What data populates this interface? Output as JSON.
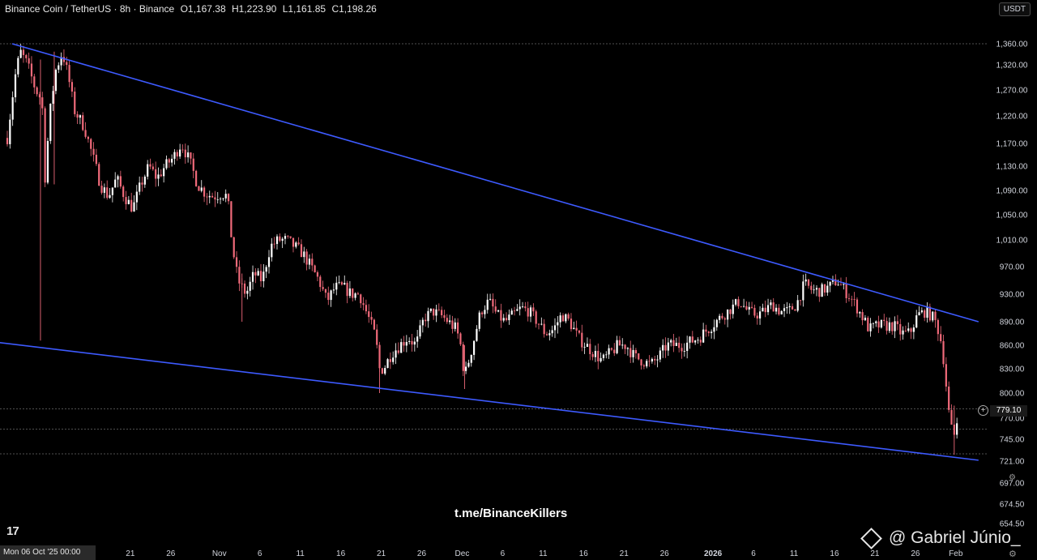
{
  "header": {
    "symbol": "Binance Coin / TetherUS · 8h · Binance",
    "open": "O1,167.38",
    "high": "H1,223.90",
    "low": "L1,161.85",
    "close": "C1,198.26"
  },
  "currency_button": "USDT",
  "tv_logo": "17",
  "watermark": "t.me/BinanceKillers",
  "brand": "@ Gabriel Júnio_",
  "current_price": "779.10",
  "x_axis": {
    "first_label": "Mon 06 Oct '25   00:00",
    "labels": [
      "21",
      "26",
      "Nov",
      "6",
      "11",
      "16",
      "21",
      "26",
      "Dec",
      "6",
      "11",
      "16",
      "21",
      "26",
      "2026",
      "6",
      "11",
      "16",
      "21",
      "26",
      "Feb"
    ]
  },
  "chart_data": {
    "type": "candlestick",
    "title": "",
    "xlabel": "",
    "ylabel": "",
    "ylim": [
      654.5,
      1360
    ],
    "y_ticks": [
      "1,360.00",
      "1,320.00",
      "1,270.00",
      "1,220.00",
      "1,170.00",
      "1,130.00",
      "1,090.00",
      "1,050.00",
      "1,010.00",
      "970.00",
      "930.00",
      "890.00",
      "860.00",
      "830.00",
      "800.00",
      "770.00",
      "745.00",
      "721.00",
      "697.00",
      "674.50",
      "654.50"
    ],
    "y_tick_values": [
      1360,
      1320,
      1270,
      1220,
      1170,
      1130,
      1090,
      1050,
      1010,
      970,
      930,
      890,
      860,
      830,
      800,
      770,
      745,
      721,
      697,
      674.5,
      654.5
    ],
    "up_color": "#ffffff",
    "down_color": "#f06a7a",
    "trendline_color": "#3d5afe",
    "trendlines": [
      {
        "name": "upper",
        "from": {
          "day": 0.6,
          "price": 1375
        },
        "to": {
          "day": 120,
          "price": 890
        }
      },
      {
        "name": "lower",
        "from": {
          "day": -3.1,
          "price": 866
        },
        "to": {
          "day": 120,
          "price": 722
        }
      }
    ],
    "horizontal_levels": [
      1373,
      781,
      757,
      729
    ],
    "date_start": "2025-10-06",
    "bar_interval_hours": 8,
    "close_anchors": [
      [
        0,
        1180
      ],
      [
        1,
        1300
      ],
      [
        1.6,
        1345
      ],
      [
        2.5,
        1320
      ],
      [
        3.5,
        1270
      ],
      [
        4.3,
        1250
      ],
      [
        4.6,
        1100
      ],
      [
        5.3,
        1230
      ],
      [
        6,
        1310
      ],
      [
        6.8,
        1345
      ],
      [
        7.5,
        1300
      ],
      [
        8.3,
        1230
      ],
      [
        9.5,
        1200
      ],
      [
        10.5,
        1150
      ],
      [
        11.5,
        1100
      ],
      [
        12.5,
        1080
      ],
      [
        13.5,
        1110
      ],
      [
        14.5,
        1080
      ],
      [
        15.5,
        1060
      ],
      [
        16.5,
        1100
      ],
      [
        17.5,
        1130
      ],
      [
        18.5,
        1110
      ],
      [
        19.5,
        1130
      ],
      [
        20.5,
        1145
      ],
      [
        21.5,
        1170
      ],
      [
        22.5,
        1140
      ],
      [
        23.5,
        1100
      ],
      [
        24.5,
        1085
      ],
      [
        25.5,
        1080
      ],
      [
        26.5,
        1085
      ],
      [
        27.2,
        1080
      ],
      [
        27.8,
        1000
      ],
      [
        28.5,
        950
      ],
      [
        29.5,
        930
      ],
      [
        30.5,
        960
      ],
      [
        31.5,
        950
      ],
      [
        32.5,
        1000
      ],
      [
        33.5,
        1010
      ],
      [
        34.5,
        1010
      ],
      [
        35.5,
        1000
      ],
      [
        36.5,
        990
      ],
      [
        37.5,
        970
      ],
      [
        38.5,
        950
      ],
      [
        39.5,
        920
      ],
      [
        40.5,
        940
      ],
      [
        41.5,
        940
      ],
      [
        42.5,
        930
      ],
      [
        43.5,
        930
      ],
      [
        44.5,
        900
      ],
      [
        45.5,
        870
      ],
      [
        46,
        830
      ],
      [
        46.5,
        830
      ],
      [
        47.5,
        850
      ],
      [
        48.5,
        860
      ],
      [
        49.5,
        870
      ],
      [
        50.5,
        860
      ],
      [
        51.5,
        895
      ],
      [
        52.5,
        905
      ],
      [
        53.5,
        900
      ],
      [
        54.5,
        890
      ],
      [
        55.5,
        880
      ],
      [
        56,
        860
      ],
      [
        56.5,
        820
      ],
      [
        57.5,
        860
      ],
      [
        58.5,
        905
      ],
      [
        59.5,
        920
      ],
      [
        60.5,
        900
      ],
      [
        61.5,
        890
      ],
      [
        62.5,
        900
      ],
      [
        63.5,
        910
      ],
      [
        64.5,
        905
      ],
      [
        65.5,
        890
      ],
      [
        66.5,
        875
      ],
      [
        67.5,
        880
      ],
      [
        68.5,
        900
      ],
      [
        69.5,
        890
      ],
      [
        70.5,
        870
      ],
      [
        71.5,
        860
      ],
      [
        72.5,
        850
      ],
      [
        73.5,
        840
      ],
      [
        74.5,
        850
      ],
      [
        75.5,
        860
      ],
      [
        76.5,
        860
      ],
      [
        77.5,
        845
      ],
      [
        78.5,
        840
      ],
      [
        79.5,
        835
      ],
      [
        80.5,
        845
      ],
      [
        81.5,
        860
      ],
      [
        82.5,
        860
      ],
      [
        83.5,
        860
      ],
      [
        84.5,
        865
      ],
      [
        85.5,
        870
      ],
      [
        86.5,
        880
      ],
      [
        87.5,
        890
      ],
      [
        88.5,
        900
      ],
      [
        89.5,
        910
      ],
      [
        90.5,
        920
      ],
      [
        91.5,
        905
      ],
      [
        92.5,
        900
      ],
      [
        93.5,
        905
      ],
      [
        94.5,
        915
      ],
      [
        95.5,
        905
      ],
      [
        96.5,
        905
      ],
      [
        97.5,
        915
      ],
      [
        98.5,
        945
      ],
      [
        99.5,
        935
      ],
      [
        100.5,
        935
      ],
      [
        101.5,
        940
      ],
      [
        102.5,
        950
      ],
      [
        103.5,
        935
      ],
      [
        104.5,
        920
      ],
      [
        105.5,
        900
      ],
      [
        106.5,
        880
      ],
      [
        107.5,
        885
      ],
      [
        108.5,
        885
      ],
      [
        109.5,
        885
      ],
      [
        110.5,
        875
      ],
      [
        111.5,
        875
      ],
      [
        112.5,
        900
      ],
      [
        113.5,
        905
      ],
      [
        114.5,
        895
      ],
      [
        115,
        880
      ],
      [
        115.5,
        860
      ],
      [
        116,
        810
      ],
      [
        116.5,
        760
      ],
      [
        117,
        750
      ],
      [
        117.6,
        779
      ]
    ]
  }
}
